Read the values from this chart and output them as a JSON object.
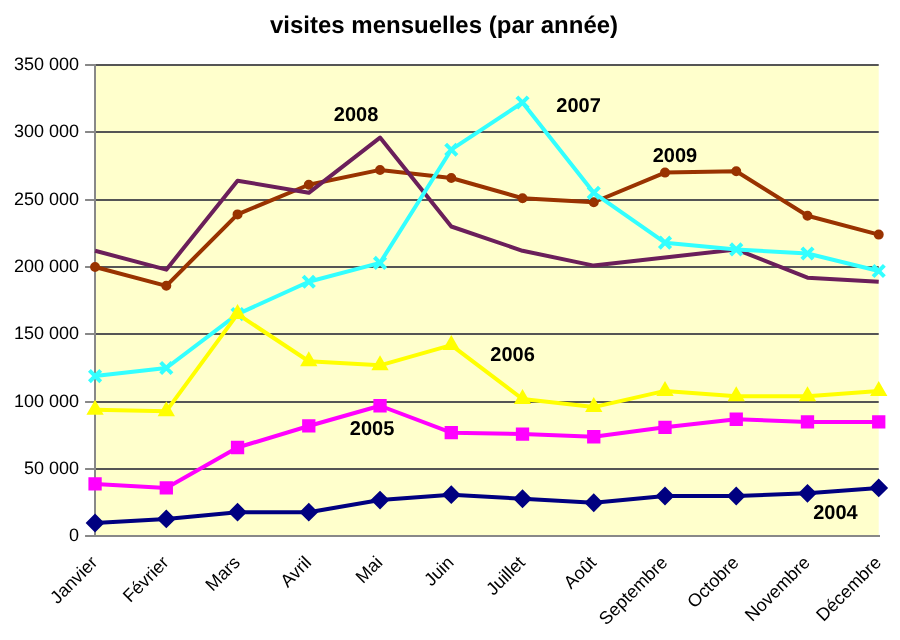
{
  "chart_data": {
    "type": "line",
    "title": "visites mensuelles (par année)",
    "categories": [
      "Janvier",
      "Février",
      "Mars",
      "Avril",
      "Mai",
      "Juin",
      "Juillet",
      "Août",
      "Septembre",
      "Octobre",
      "Novembre",
      "Décembre"
    ],
    "series": [
      {
        "name": "2004",
        "color": "#000080",
        "marker": "diamond",
        "values": [
          10000,
          13000,
          18000,
          18000,
          27000,
          31000,
          28000,
          25000,
          30000,
          30000,
          32000,
          36000
        ]
      },
      {
        "name": "2005",
        "color": "#ff00ff",
        "marker": "square",
        "values": [
          39000,
          36000,
          66000,
          82000,
          97000,
          77000,
          76000,
          74000,
          81000,
          87000,
          85000,
          85000
        ]
      },
      {
        "name": "2006",
        "color": "#ffff00",
        "marker": "triangle",
        "values": [
          94000,
          93000,
          165000,
          130000,
          127000,
          142000,
          102000,
          96000,
          108000,
          104000,
          104000,
          108000
        ]
      },
      {
        "name": "2007",
        "color": "#33ffff",
        "marker": "cross",
        "values": [
          119000,
          125000,
          165000,
          189000,
          203000,
          287000,
          322000,
          255000,
          218000,
          213000,
          210000,
          197000
        ]
      },
      {
        "name": "2008",
        "color": "#6b1f5a",
        "marker": "none",
        "values": [
          212000,
          198000,
          264000,
          255000,
          296000,
          230000,
          212000,
          201000,
          207000,
          213000,
          192000,
          189000
        ]
      },
      {
        "name": "2009",
        "color": "#993300",
        "marker": "circle",
        "values": [
          200000,
          186000,
          239000,
          261000,
          272000,
          266000,
          251000,
          248000,
          270000,
          271000,
          238000,
          224000
        ]
      }
    ],
    "ylim": [
      0,
      350000
    ],
    "yticks": [
      0,
      50000,
      100000,
      150000,
      200000,
      250000,
      300000,
      350000
    ],
    "grid": "y",
    "legend": false
  }
}
